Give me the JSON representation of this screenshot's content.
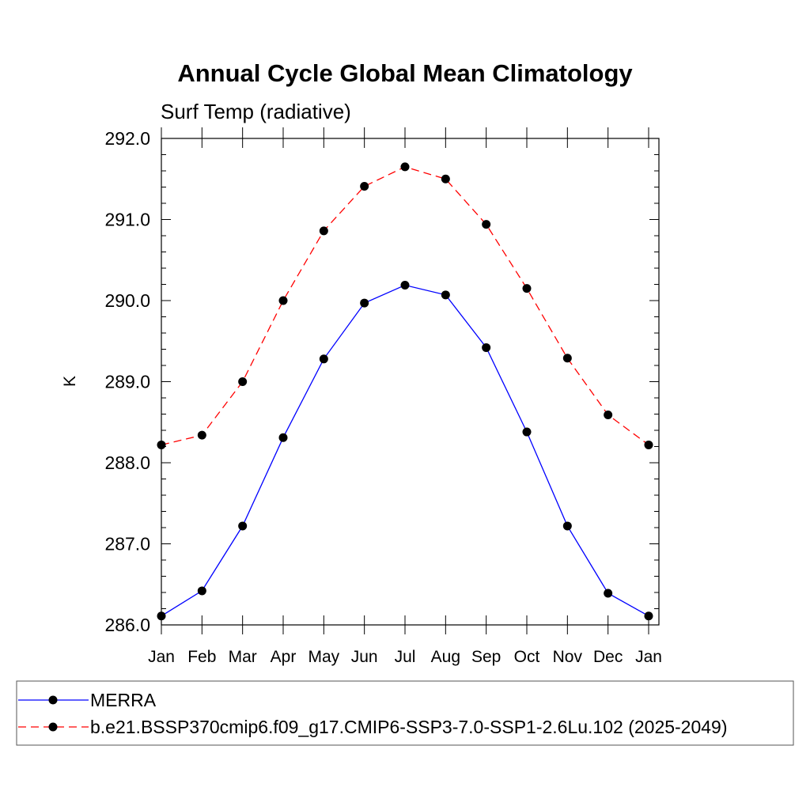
{
  "chart_data": {
    "type": "line",
    "title": "Annual Cycle Global Mean Climatology",
    "subtitle": "Surf Temp (radiative)",
    "xlabel": "",
    "ylabel": "K",
    "categories": [
      "Jan",
      "Feb",
      "Mar",
      "Apr",
      "May",
      "Jun",
      "Jul",
      "Aug",
      "Sep",
      "Oct",
      "Nov",
      "Dec",
      "Jan"
    ],
    "ylim": [
      286.0,
      292.0
    ],
    "yticks": [
      "286.0",
      "287.0",
      "288.0",
      "289.0",
      "290.0",
      "291.0",
      "292.0"
    ],
    "grid": false,
    "legend_position": "bottom",
    "series": [
      {
        "name": "MERRA",
        "color": "#0000ff",
        "line_style": "solid",
        "marker": "filled-circle",
        "values": [
          286.11,
          286.42,
          287.22,
          288.31,
          289.28,
          289.97,
          290.19,
          290.07,
          289.42,
          288.38,
          287.22,
          286.39,
          286.11
        ]
      },
      {
        "name": "b.e21.BSSP370cmip6.f09_g17.CMIP6-SSP3-7.0-SSP1-2.6Lu.102 (2025-2049)",
        "color": "#ff0000",
        "line_style": "dashed",
        "marker": "filled-circle",
        "values": [
          288.22,
          288.34,
          289.0,
          290.0,
          290.86,
          291.41,
          291.65,
          291.5,
          290.94,
          290.15,
          289.29,
          288.59,
          288.22
        ]
      }
    ]
  }
}
